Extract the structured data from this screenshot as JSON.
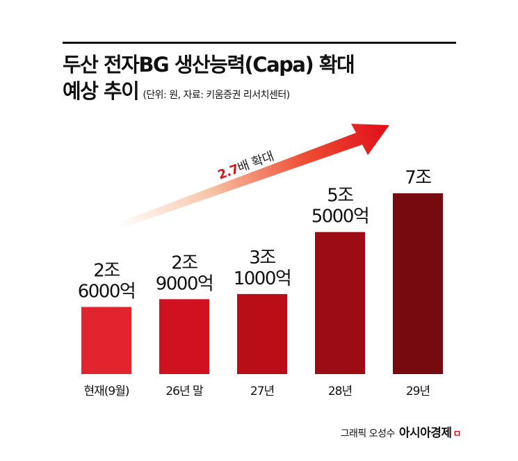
{
  "title_line1": "두산 전자BG 생산능력(Capa) 확대",
  "title_line2": "예상 추이",
  "subtitle": "(단위: 원, 자료: 키움증권 리서치센터)",
  "arrow_label_num": "2.7",
  "arrow_label_text": "배 확대",
  "credit": {
    "text": "그래픽 오성수",
    "brand": "아시아경제",
    "mark": "ㅁ"
  },
  "colors": [
    "#e2242e",
    "#cf1120",
    "#b90d18",
    "#9c0c14",
    "#760a0f"
  ],
  "arrow_num_color": "#e0101a",
  "chart_data": {
    "type": "bar",
    "categories": [
      "현재(9월)",
      "26년 말",
      "27년",
      "28년",
      "29년"
    ],
    "values": [
      26000,
      29000,
      31000,
      55000,
      70000
    ],
    "value_labels": [
      [
        "2조",
        "6000억"
      ],
      [
        "2조",
        "9000억"
      ],
      [
        "3조",
        "1000억"
      ],
      [
        "5조",
        "5000억"
      ],
      [
        "7조"
      ]
    ],
    "unit": "억원"
  }
}
